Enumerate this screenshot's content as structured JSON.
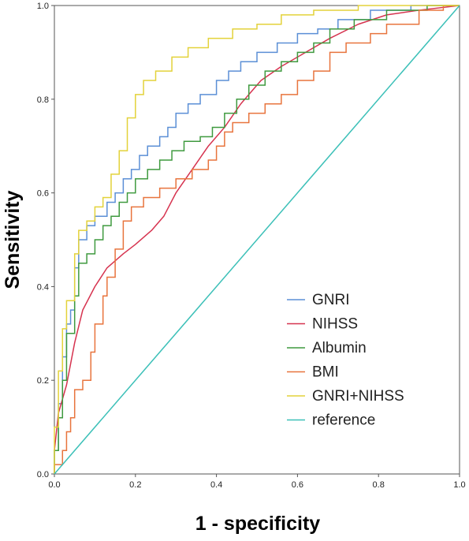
{
  "chart_data": {
    "type": "line",
    "title": "",
    "xlabel": "1 - specificity",
    "ylabel": "Sensitivity",
    "xlim": [
      0,
      1
    ],
    "ylim": [
      0,
      1
    ],
    "xticks": [
      "0.0",
      "0.2",
      "0.4",
      "0.6",
      "0.8",
      "1.0"
    ],
    "yticks": [
      "0.0",
      "0.2",
      "0.4",
      "0.6",
      "0.8",
      "1.0"
    ],
    "grid": false,
    "legend_position": "bottom-right",
    "series": [
      {
        "name": "GNRI",
        "color": "#5b8fd6",
        "step": true,
        "points": [
          [
            0,
            0
          ],
          [
            0,
            0.05
          ],
          [
            0.01,
            0.05
          ],
          [
            0.01,
            0.15
          ],
          [
            0.02,
            0.15
          ],
          [
            0.02,
            0.25
          ],
          [
            0.03,
            0.25
          ],
          [
            0.03,
            0.32
          ],
          [
            0.04,
            0.32
          ],
          [
            0.04,
            0.35
          ],
          [
            0.05,
            0.35
          ],
          [
            0.05,
            0.44
          ],
          [
            0.06,
            0.44
          ],
          [
            0.06,
            0.5
          ],
          [
            0.08,
            0.5
          ],
          [
            0.08,
            0.53
          ],
          [
            0.1,
            0.53
          ],
          [
            0.1,
            0.55
          ],
          [
            0.13,
            0.55
          ],
          [
            0.13,
            0.58
          ],
          [
            0.15,
            0.58
          ],
          [
            0.15,
            0.6
          ],
          [
            0.17,
            0.6
          ],
          [
            0.17,
            0.63
          ],
          [
            0.19,
            0.63
          ],
          [
            0.19,
            0.65
          ],
          [
            0.21,
            0.65
          ],
          [
            0.21,
            0.68
          ],
          [
            0.23,
            0.68
          ],
          [
            0.23,
            0.7
          ],
          [
            0.26,
            0.7
          ],
          [
            0.26,
            0.72
          ],
          [
            0.28,
            0.72
          ],
          [
            0.28,
            0.74
          ],
          [
            0.3,
            0.74
          ],
          [
            0.3,
            0.77
          ],
          [
            0.33,
            0.77
          ],
          [
            0.33,
            0.79
          ],
          [
            0.36,
            0.79
          ],
          [
            0.36,
            0.81
          ],
          [
            0.4,
            0.81
          ],
          [
            0.4,
            0.84
          ],
          [
            0.43,
            0.84
          ],
          [
            0.43,
            0.86
          ],
          [
            0.46,
            0.86
          ],
          [
            0.46,
            0.88
          ],
          [
            0.5,
            0.88
          ],
          [
            0.5,
            0.9
          ],
          [
            0.55,
            0.9
          ],
          [
            0.55,
            0.92
          ],
          [
            0.6,
            0.92
          ],
          [
            0.6,
            0.94
          ],
          [
            0.65,
            0.94
          ],
          [
            0.65,
            0.95
          ],
          [
            0.7,
            0.95
          ],
          [
            0.7,
            0.97
          ],
          [
            0.78,
            0.97
          ],
          [
            0.78,
            0.99
          ],
          [
            0.88,
            0.99
          ],
          [
            0.88,
            1
          ],
          [
            1,
            1
          ]
        ]
      },
      {
        "name": "NIHSS",
        "color": "#d6334f",
        "step": false,
        "points": [
          [
            0,
            0.05
          ],
          [
            0.01,
            0.13
          ],
          [
            0.03,
            0.19
          ],
          [
            0.05,
            0.28
          ],
          [
            0.07,
            0.35
          ],
          [
            0.1,
            0.4
          ],
          [
            0.13,
            0.44
          ],
          [
            0.17,
            0.47
          ],
          [
            0.2,
            0.49
          ],
          [
            0.24,
            0.52
          ],
          [
            0.27,
            0.55
          ],
          [
            0.3,
            0.6
          ],
          [
            0.34,
            0.65
          ],
          [
            0.38,
            0.7
          ],
          [
            0.42,
            0.74
          ],
          [
            0.46,
            0.79
          ],
          [
            0.51,
            0.84
          ],
          [
            0.56,
            0.87
          ],
          [
            0.62,
            0.9
          ],
          [
            0.68,
            0.93
          ],
          [
            0.75,
            0.96
          ],
          [
            0.82,
            0.98
          ],
          [
            0.9,
            0.99
          ],
          [
            1,
            1
          ]
        ]
      },
      {
        "name": "Albumin",
        "color": "#3f9a3f",
        "step": true,
        "points": [
          [
            0,
            0
          ],
          [
            0,
            0.05
          ],
          [
            0.01,
            0.05
          ],
          [
            0.01,
            0.12
          ],
          [
            0.02,
            0.12
          ],
          [
            0.02,
            0.2
          ],
          [
            0.03,
            0.2
          ],
          [
            0.03,
            0.3
          ],
          [
            0.05,
            0.3
          ],
          [
            0.05,
            0.38
          ],
          [
            0.06,
            0.38
          ],
          [
            0.06,
            0.45
          ],
          [
            0.08,
            0.45
          ],
          [
            0.08,
            0.47
          ],
          [
            0.1,
            0.47
          ],
          [
            0.1,
            0.5
          ],
          [
            0.12,
            0.5
          ],
          [
            0.12,
            0.53
          ],
          [
            0.14,
            0.53
          ],
          [
            0.14,
            0.55
          ],
          [
            0.16,
            0.55
          ],
          [
            0.16,
            0.58
          ],
          [
            0.18,
            0.58
          ],
          [
            0.18,
            0.6
          ],
          [
            0.2,
            0.6
          ],
          [
            0.2,
            0.63
          ],
          [
            0.23,
            0.63
          ],
          [
            0.23,
            0.65
          ],
          [
            0.26,
            0.65
          ],
          [
            0.26,
            0.67
          ],
          [
            0.29,
            0.67
          ],
          [
            0.29,
            0.69
          ],
          [
            0.32,
            0.69
          ],
          [
            0.32,
            0.71
          ],
          [
            0.36,
            0.71
          ],
          [
            0.36,
            0.72
          ],
          [
            0.39,
            0.72
          ],
          [
            0.39,
            0.74
          ],
          [
            0.42,
            0.74
          ],
          [
            0.42,
            0.77
          ],
          [
            0.45,
            0.77
          ],
          [
            0.45,
            0.8
          ],
          [
            0.48,
            0.8
          ],
          [
            0.48,
            0.83
          ],
          [
            0.52,
            0.83
          ],
          [
            0.52,
            0.86
          ],
          [
            0.56,
            0.86
          ],
          [
            0.56,
            0.88
          ],
          [
            0.6,
            0.88
          ],
          [
            0.6,
            0.9
          ],
          [
            0.64,
            0.9
          ],
          [
            0.64,
            0.92
          ],
          [
            0.68,
            0.92
          ],
          [
            0.68,
            0.95
          ],
          [
            0.74,
            0.95
          ],
          [
            0.74,
            0.97
          ],
          [
            0.82,
            0.97
          ],
          [
            0.82,
            0.99
          ],
          [
            0.92,
            0.99
          ],
          [
            0.92,
            1
          ],
          [
            1,
            1
          ]
        ]
      },
      {
        "name": "BMI",
        "color": "#e8743d",
        "step": true,
        "points": [
          [
            0,
            0
          ],
          [
            0,
            0.02
          ],
          [
            0.02,
            0.02
          ],
          [
            0.02,
            0.05
          ],
          [
            0.03,
            0.05
          ],
          [
            0.03,
            0.09
          ],
          [
            0.04,
            0.09
          ],
          [
            0.04,
            0.12
          ],
          [
            0.05,
            0.12
          ],
          [
            0.05,
            0.18
          ],
          [
            0.07,
            0.18
          ],
          [
            0.07,
            0.2
          ],
          [
            0.09,
            0.2
          ],
          [
            0.09,
            0.26
          ],
          [
            0.1,
            0.26
          ],
          [
            0.1,
            0.32
          ],
          [
            0.12,
            0.32
          ],
          [
            0.12,
            0.38
          ],
          [
            0.13,
            0.38
          ],
          [
            0.13,
            0.42
          ],
          [
            0.15,
            0.42
          ],
          [
            0.15,
            0.48
          ],
          [
            0.17,
            0.48
          ],
          [
            0.17,
            0.54
          ],
          [
            0.19,
            0.54
          ],
          [
            0.19,
            0.57
          ],
          [
            0.22,
            0.57
          ],
          [
            0.22,
            0.59
          ],
          [
            0.26,
            0.59
          ],
          [
            0.26,
            0.61
          ],
          [
            0.3,
            0.61
          ],
          [
            0.3,
            0.63
          ],
          [
            0.34,
            0.63
          ],
          [
            0.34,
            0.65
          ],
          [
            0.38,
            0.65
          ],
          [
            0.38,
            0.67
          ],
          [
            0.4,
            0.67
          ],
          [
            0.4,
            0.7
          ],
          [
            0.42,
            0.7
          ],
          [
            0.42,
            0.73
          ],
          [
            0.44,
            0.73
          ],
          [
            0.44,
            0.75
          ],
          [
            0.48,
            0.75
          ],
          [
            0.48,
            0.77
          ],
          [
            0.52,
            0.77
          ],
          [
            0.52,
            0.79
          ],
          [
            0.56,
            0.79
          ],
          [
            0.56,
            0.81
          ],
          [
            0.6,
            0.81
          ],
          [
            0.6,
            0.84
          ],
          [
            0.64,
            0.84
          ],
          [
            0.64,
            0.86
          ],
          [
            0.68,
            0.86
          ],
          [
            0.68,
            0.9
          ],
          [
            0.72,
            0.9
          ],
          [
            0.72,
            0.92
          ],
          [
            0.78,
            0.92
          ],
          [
            0.78,
            0.94
          ],
          [
            0.82,
            0.94
          ],
          [
            0.82,
            0.96
          ],
          [
            0.9,
            0.96
          ],
          [
            0.9,
            0.99
          ],
          [
            0.96,
            0.99
          ],
          [
            0.96,
            1
          ],
          [
            1,
            1
          ]
        ]
      },
      {
        "name": "GNRI+NIHSS",
        "color": "#e3d23a",
        "step": true,
        "points": [
          [
            0,
            0
          ],
          [
            0,
            0.1
          ],
          [
            0.01,
            0.1
          ],
          [
            0.01,
            0.22
          ],
          [
            0.02,
            0.22
          ],
          [
            0.02,
            0.31
          ],
          [
            0.03,
            0.31
          ],
          [
            0.03,
            0.37
          ],
          [
            0.05,
            0.37
          ],
          [
            0.05,
            0.47
          ],
          [
            0.06,
            0.47
          ],
          [
            0.06,
            0.52
          ],
          [
            0.08,
            0.52
          ],
          [
            0.08,
            0.54
          ],
          [
            0.1,
            0.54
          ],
          [
            0.1,
            0.57
          ],
          [
            0.12,
            0.57
          ],
          [
            0.12,
            0.59
          ],
          [
            0.14,
            0.59
          ],
          [
            0.14,
            0.64
          ],
          [
            0.16,
            0.64
          ],
          [
            0.16,
            0.69
          ],
          [
            0.18,
            0.69
          ],
          [
            0.18,
            0.76
          ],
          [
            0.2,
            0.76
          ],
          [
            0.2,
            0.81
          ],
          [
            0.22,
            0.81
          ],
          [
            0.22,
            0.84
          ],
          [
            0.25,
            0.84
          ],
          [
            0.25,
            0.86
          ],
          [
            0.29,
            0.86
          ],
          [
            0.29,
            0.89
          ],
          [
            0.33,
            0.89
          ],
          [
            0.33,
            0.91
          ],
          [
            0.38,
            0.91
          ],
          [
            0.38,
            0.93
          ],
          [
            0.44,
            0.93
          ],
          [
            0.44,
            0.95
          ],
          [
            0.5,
            0.95
          ],
          [
            0.5,
            0.96
          ],
          [
            0.56,
            0.96
          ],
          [
            0.56,
            0.98
          ],
          [
            0.64,
            0.98
          ],
          [
            0.64,
            0.99
          ],
          [
            0.75,
            0.99
          ],
          [
            0.75,
            1
          ],
          [
            1,
            1
          ]
        ]
      },
      {
        "name": "reference",
        "color": "#3cc0b8",
        "step": false,
        "points": [
          [
            0,
            0
          ],
          [
            1,
            1
          ]
        ]
      }
    ]
  }
}
